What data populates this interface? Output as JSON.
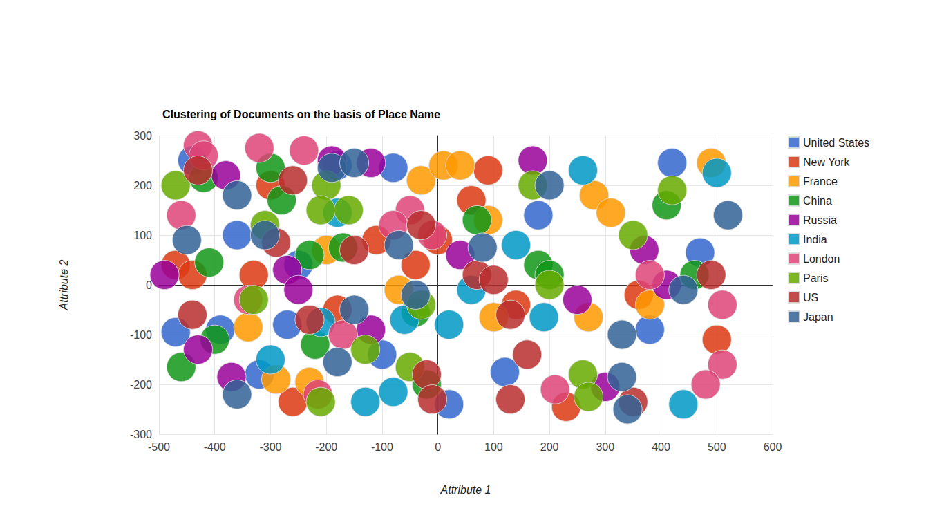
{
  "chart_data": {
    "type": "scatter",
    "title": "Clustering of Documents on the basis of Place Name",
    "x_label": "Attribute 1",
    "y_label": "Attribute 2",
    "xlim": [
      -500,
      600
    ],
    "xticks": [
      -500,
      -400,
      -300,
      -200,
      -100,
      0,
      100,
      200,
      300,
      400,
      500,
      600
    ],
    "ylim": [
      -300,
      300
    ],
    "yticks": [
      -300,
      -200,
      -100,
      0,
      100,
      200,
      300
    ],
    "grid": true,
    "legend": "right",
    "marker": "circle",
    "series": [
      {
        "name": "United States",
        "color": "#3366cc",
        "values": [
          [
            -440,
            250
          ],
          [
            -180,
            240
          ],
          [
            -80,
            235
          ],
          [
            420,
            245
          ],
          [
            470,
            65
          ],
          [
            -270,
            -80
          ],
          [
            -320,
            -180
          ],
          [
            -470,
            -95
          ],
          [
            20,
            -240
          ],
          [
            -100,
            -140
          ],
          [
            -390,
            -90
          ],
          [
            120,
            -175
          ],
          [
            380,
            -90
          ],
          [
            -360,
            100
          ],
          [
            180,
            140
          ],
          [
            -250,
            40
          ]
        ]
      },
      {
        "name": "New York",
        "color": "#dc3912",
        "values": [
          [
            -470,
            40
          ],
          [
            -440,
            20
          ],
          [
            -300,
            200
          ],
          [
            -110,
            90
          ],
          [
            0,
            90
          ],
          [
            60,
            170
          ],
          [
            90,
            230
          ],
          [
            230,
            -245
          ],
          [
            500,
            -110
          ],
          [
            -260,
            -235
          ],
          [
            -40,
            40
          ],
          [
            -330,
            20
          ],
          [
            -180,
            -50
          ],
          [
            360,
            -20
          ],
          [
            140,
            -40
          ]
        ]
      },
      {
        "name": "France",
        "color": "#ff9900",
        "values": [
          [
            -30,
            210
          ],
          [
            10,
            240
          ],
          [
            40,
            240
          ],
          [
            270,
            -65
          ],
          [
            280,
            180
          ],
          [
            310,
            145
          ],
          [
            490,
            245
          ],
          [
            -340,
            -85
          ],
          [
            -290,
            -190
          ],
          [
            -230,
            -195
          ],
          [
            100,
            -65
          ],
          [
            -200,
            70
          ],
          [
            90,
            130
          ],
          [
            380,
            -40
          ],
          [
            -70,
            -10
          ]
        ]
      },
      {
        "name": "China",
        "color": "#109618",
        "values": [
          [
            -420,
            215
          ],
          [
            -410,
            45
          ],
          [
            -300,
            235
          ],
          [
            -280,
            170
          ],
          [
            -230,
            60
          ],
          [
            -170,
            75
          ],
          [
            70,
            130
          ],
          [
            180,
            40
          ],
          [
            200,
            20
          ],
          [
            410,
            160
          ],
          [
            -400,
            -110
          ],
          [
            -220,
            -120
          ],
          [
            -40,
            -55
          ],
          [
            -460,
            -165
          ],
          [
            460,
            20
          ],
          [
            -20,
            -200
          ]
        ]
      },
      {
        "name": "Russia",
        "color": "#990099",
        "values": [
          [
            -190,
            250
          ],
          [
            -120,
            245
          ],
          [
            -380,
            220
          ],
          [
            -270,
            30
          ],
          [
            -250,
            -10
          ],
          [
            -120,
            -90
          ],
          [
            40,
            60
          ],
          [
            170,
            250
          ],
          [
            300,
            -205
          ],
          [
            370,
            70
          ],
          [
            410,
            0
          ],
          [
            -370,
            -185
          ],
          [
            -430,
            -130
          ],
          [
            250,
            -30
          ],
          [
            -490,
            20
          ]
        ]
      },
      {
        "name": "India",
        "color": "#0099c6",
        "values": [
          [
            -60,
            -70
          ],
          [
            -210,
            -75
          ],
          [
            -130,
            -235
          ],
          [
            440,
            -240
          ],
          [
            190,
            -65
          ],
          [
            140,
            80
          ],
          [
            260,
            230
          ],
          [
            500,
            225
          ],
          [
            -180,
            145
          ],
          [
            -300,
            -150
          ],
          [
            60,
            -10
          ],
          [
            20,
            -80
          ],
          [
            -80,
            -215
          ]
        ]
      },
      {
        "name": "London",
        "color": "#dd4477",
        "values": [
          [
            -430,
            280
          ],
          [
            -420,
            260
          ],
          [
            -460,
            140
          ],
          [
            -240,
            270
          ],
          [
            -320,
            275
          ],
          [
            -50,
            150
          ],
          [
            -10,
            100
          ],
          [
            510,
            -40
          ],
          [
            510,
            -160
          ],
          [
            480,
            -200
          ],
          [
            210,
            -210
          ],
          [
            -170,
            -100
          ],
          [
            380,
            20
          ],
          [
            -340,
            -30
          ],
          [
            -215,
            -220
          ],
          [
            -80,
            120
          ]
        ]
      },
      {
        "name": "Paris",
        "color": "#66aa00",
        "values": [
          [
            -470,
            200
          ],
          [
            -200,
            200
          ],
          [
            -210,
            150
          ],
          [
            -160,
            150
          ],
          [
            -310,
            120
          ],
          [
            -330,
            -30
          ],
          [
            -130,
            -130
          ],
          [
            -50,
            -165
          ],
          [
            -210,
            -235
          ],
          [
            200,
            0
          ],
          [
            260,
            -180
          ],
          [
            270,
            -225
          ],
          [
            350,
            100
          ],
          [
            420,
            190
          ],
          [
            -30,
            -40
          ],
          [
            170,
            200
          ]
        ]
      },
      {
        "name": "US",
        "color": "#b82e2e",
        "values": [
          [
            -430,
            230
          ],
          [
            -260,
            210
          ],
          [
            -290,
            85
          ],
          [
            -30,
            120
          ],
          [
            -150,
            70
          ],
          [
            -20,
            -180
          ],
          [
            -10,
            -230
          ],
          [
            70,
            20
          ],
          [
            100,
            10
          ],
          [
            130,
            -60
          ],
          [
            130,
            -230
          ],
          [
            160,
            -140
          ],
          [
            350,
            -235
          ],
          [
            490,
            20
          ],
          [
            -440,
            -60
          ],
          [
            -230,
            -70
          ]
        ]
      },
      {
        "name": "Japan",
        "color": "#316395",
        "values": [
          [
            -450,
            90
          ],
          [
            -360,
            180
          ],
          [
            -310,
            100
          ],
          [
            -190,
            235
          ],
          [
            -150,
            245
          ],
          [
            -150,
            -50
          ],
          [
            -40,
            -20
          ],
          [
            -70,
            80
          ],
          [
            80,
            75
          ],
          [
            200,
            200
          ],
          [
            330,
            -100
          ],
          [
            330,
            -185
          ],
          [
            340,
            -250
          ],
          [
            440,
            -10
          ],
          [
            520,
            140
          ],
          [
            -360,
            -220
          ],
          [
            -180,
            -155
          ]
        ]
      }
    ]
  }
}
